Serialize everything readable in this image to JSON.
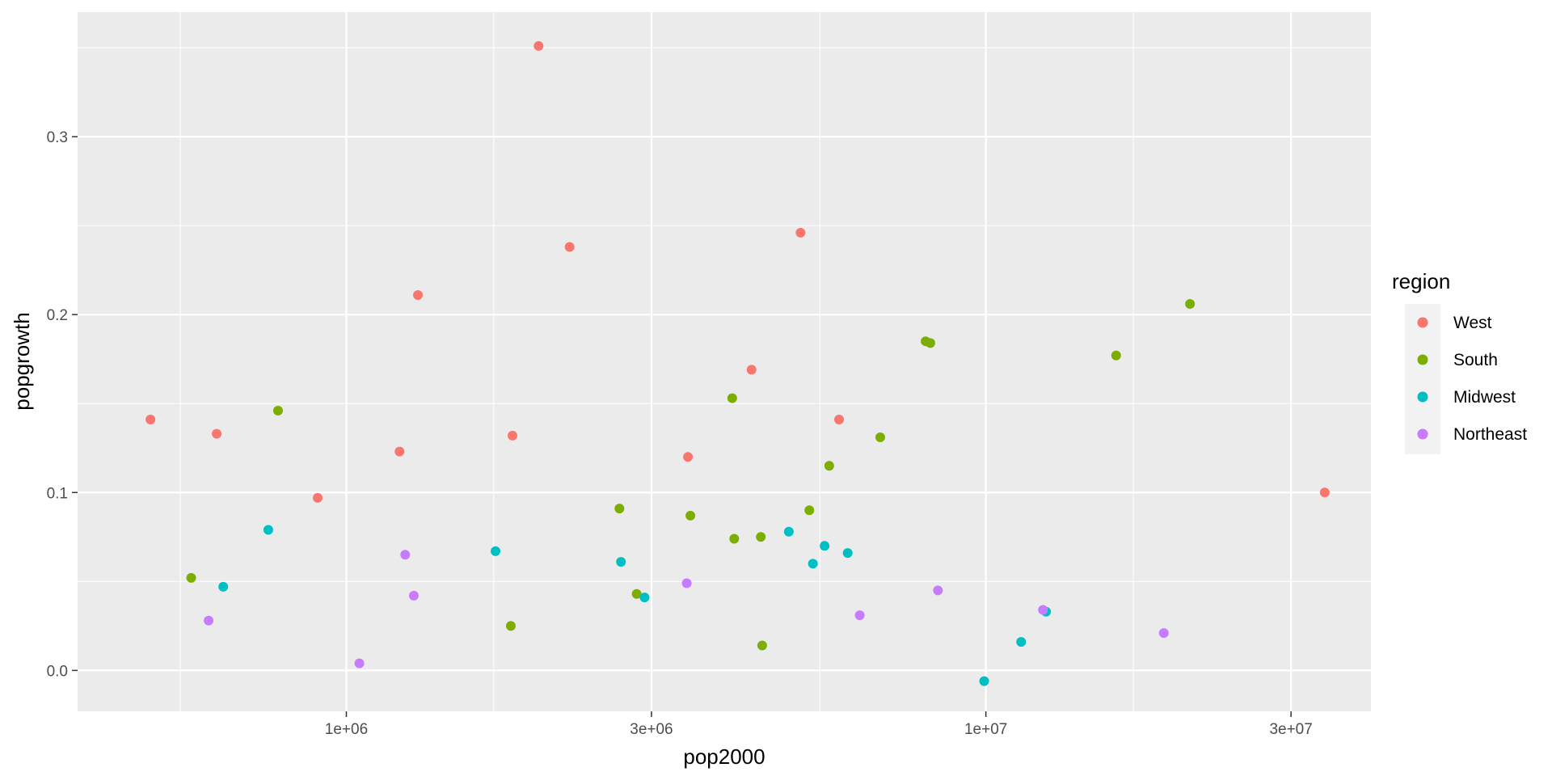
{
  "chart_data": {
    "type": "scatter",
    "xlabel": "pop2000",
    "ylabel": "popgrowth",
    "x_scale": "log10",
    "xlim": [
      380000,
      40000000
    ],
    "ylim": [
      -0.023,
      0.37
    ],
    "x_ticks": [
      {
        "value": 1000000,
        "label": "1e+06"
      },
      {
        "value": 3000000,
        "label": "3e+06"
      },
      {
        "value": 10000000,
        "label": "1e+07"
      },
      {
        "value": 30000000,
        "label": "3e+07"
      }
    ],
    "x_minor": [
      550000,
      1700000,
      5500000,
      17000000
    ],
    "y_ticks": [
      {
        "value": 0.0,
        "label": "0.0"
      },
      {
        "value": 0.1,
        "label": "0.1"
      },
      {
        "value": 0.2,
        "label": "0.2"
      },
      {
        "value": 0.3,
        "label": "0.3"
      }
    ],
    "y_minor": [
      0.05,
      0.15,
      0.25,
      0.35
    ],
    "grid": true,
    "legend": {
      "title": "region",
      "position": "right"
    },
    "series": [
      {
        "name": "West",
        "color": "#F8766D",
        "points": [
          {
            "x": 494000,
            "y": 0.141
          },
          {
            "x": 627000,
            "y": 0.133
          },
          {
            "x": 902000,
            "y": 0.097
          },
          {
            "x": 1211000,
            "y": 0.123
          },
          {
            "x": 1294000,
            "y": 0.211
          },
          {
            "x": 1819000,
            "y": 0.132
          },
          {
            "x": 1998000,
            "y": 0.351
          },
          {
            "x": 2234000,
            "y": 0.238
          },
          {
            "x": 3421000,
            "y": 0.12
          },
          {
            "x": 4301000,
            "y": 0.169
          },
          {
            "x": 5131000,
            "y": 0.246
          },
          {
            "x": 5894000,
            "y": 0.141
          },
          {
            "x": 33872000,
            "y": 0.1
          }
        ]
      },
      {
        "name": "South",
        "color": "#7CAE00",
        "points": [
          {
            "x": 572000,
            "y": 0.052
          },
          {
            "x": 782000,
            "y": 0.146
          },
          {
            "x": 1808000,
            "y": 0.025
          },
          {
            "x": 2673000,
            "y": 0.091
          },
          {
            "x": 2844000,
            "y": 0.043
          },
          {
            "x": 3451000,
            "y": 0.087
          },
          {
            "x": 4012000,
            "y": 0.153
          },
          {
            "x": 4041000,
            "y": 0.074
          },
          {
            "x": 4447000,
            "y": 0.075
          },
          {
            "x": 4469000,
            "y": 0.014
          },
          {
            "x": 5296000,
            "y": 0.09
          },
          {
            "x": 5689000,
            "y": 0.115
          },
          {
            "x": 6836000,
            "y": 0.131
          },
          {
            "x": 8049000,
            "y": 0.185
          },
          {
            "x": 8186000,
            "y": 0.184
          },
          {
            "x": 15982000,
            "y": 0.177
          },
          {
            "x": 20852000,
            "y": 0.206
          }
        ]
      },
      {
        "name": "Midwest",
        "color": "#00BFC4",
        "points": [
          {
            "x": 642000,
            "y": 0.047
          },
          {
            "x": 755000,
            "y": 0.079
          },
          {
            "x": 1711000,
            "y": 0.067
          },
          {
            "x": 2688000,
            "y": 0.061
          },
          {
            "x": 2926000,
            "y": 0.041
          },
          {
            "x": 4919000,
            "y": 0.078
          },
          {
            "x": 5364000,
            "y": 0.06
          },
          {
            "x": 5595000,
            "y": 0.07
          },
          {
            "x": 6080000,
            "y": 0.066
          },
          {
            "x": 9938000,
            "y": -0.006
          },
          {
            "x": 11353000,
            "y": 0.016
          },
          {
            "x": 12419000,
            "y": 0.033
          }
        ]
      },
      {
        "name": "Northeast",
        "color": "#C77CFF",
        "points": [
          {
            "x": 609000,
            "y": 0.028
          },
          {
            "x": 1048000,
            "y": 0.004
          },
          {
            "x": 1236000,
            "y": 0.065
          },
          {
            "x": 1275000,
            "y": 0.042
          },
          {
            "x": 3406000,
            "y": 0.049
          },
          {
            "x": 6349000,
            "y": 0.031
          },
          {
            "x": 8414000,
            "y": 0.045
          },
          {
            "x": 12281000,
            "y": 0.034
          },
          {
            "x": 18976000,
            "y": 0.021
          }
        ]
      }
    ]
  }
}
